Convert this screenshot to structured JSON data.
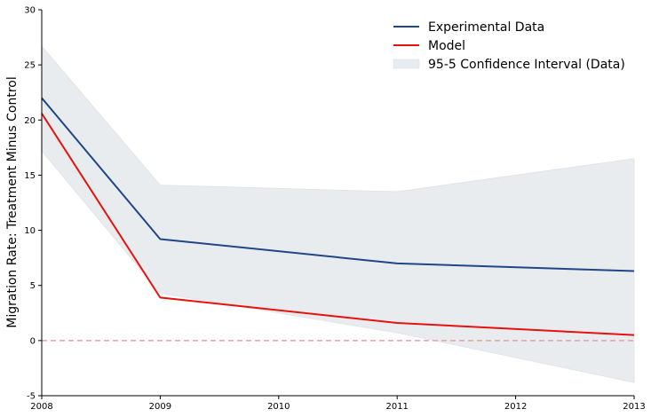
{
  "chart_data": {
    "type": "line",
    "title": "",
    "xlabel": "",
    "ylabel": "Migration Rate: Treatment Minus Control",
    "x": [
      2008,
      2009,
      2011,
      2013
    ],
    "xticks": [
      "2008",
      "2009",
      "2010",
      "2011",
      "2012",
      "2013"
    ],
    "yticks": [
      "-5",
      "0",
      "5",
      "10",
      "15",
      "20",
      "25",
      "30"
    ],
    "xlim": [
      2008,
      2013
    ],
    "ylim": [
      -5,
      30
    ],
    "grid": false,
    "legend_position": "top-right",
    "series": [
      {
        "name": "Experimental Data",
        "color": "#1f4788",
        "values": [
          22.0,
          9.2,
          7.0,
          6.3
        ]
      },
      {
        "name": "Model",
        "color": "#e8120c",
        "values": [
          20.6,
          3.9,
          1.6,
          0.5
        ]
      }
    ],
    "confidence_band": {
      "name": "95-5 Confidence Interval (Data)",
      "color": "#e9ecef",
      "lower": [
        17.2,
        4.3,
        0.7,
        -3.8
      ],
      "upper": [
        26.7,
        14.1,
        13.5,
        16.5
      ]
    },
    "reference_line": {
      "y": 0,
      "color": "#e8a0a8",
      "style": "dashed"
    }
  }
}
